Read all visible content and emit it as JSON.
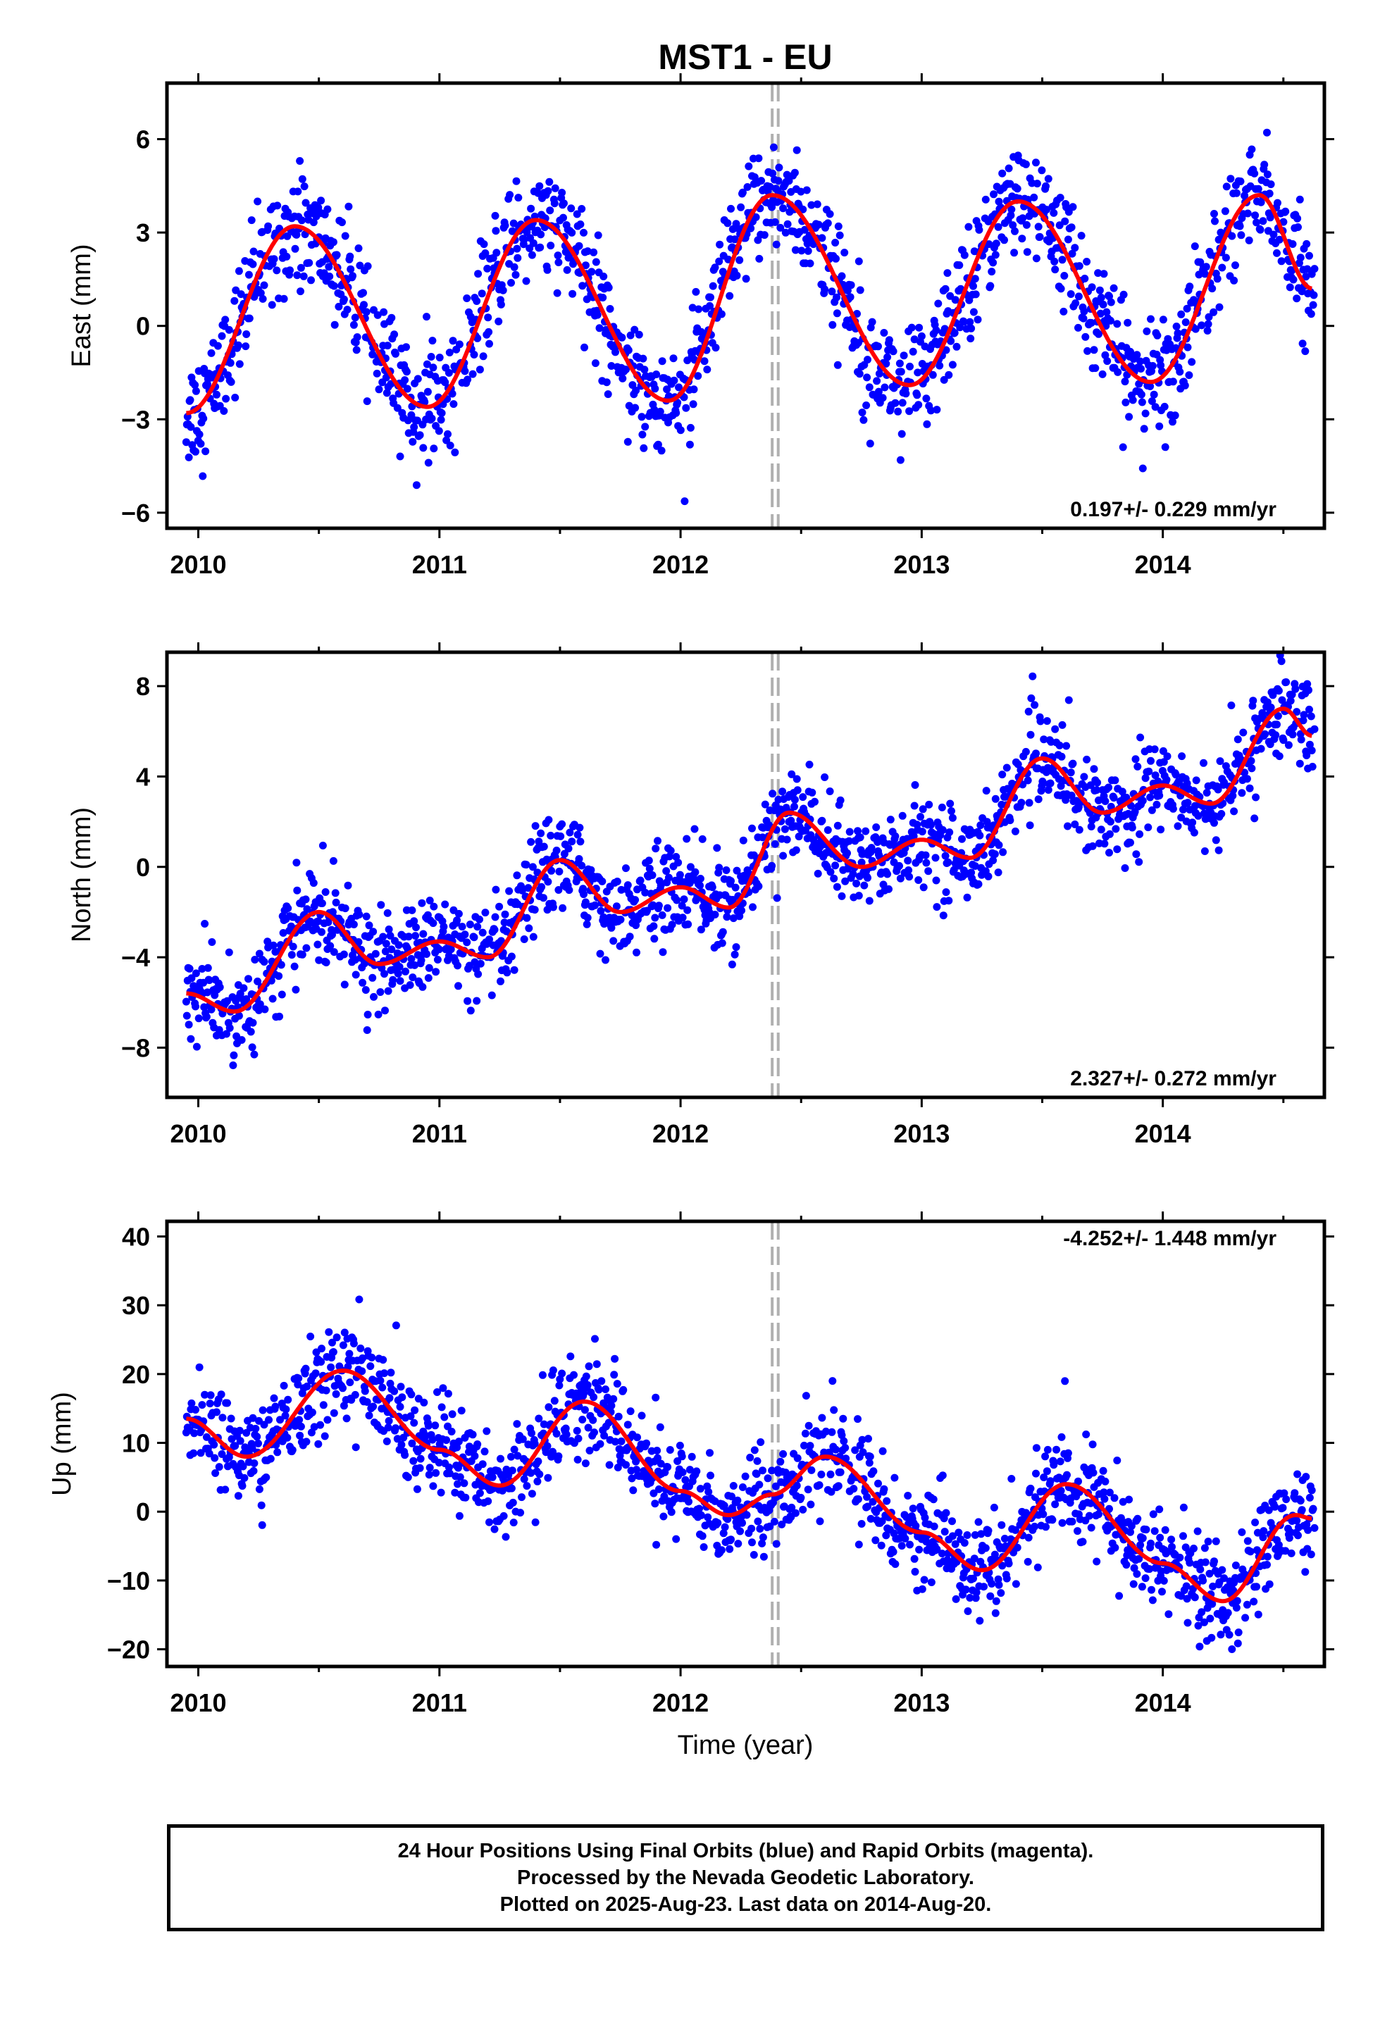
{
  "title": "MST1 - EU",
  "footer": {
    "line1": "24 Hour Positions Using Final Orbits (blue) and Rapid Orbits (magenta).",
    "line2": "Processed by the Nevada Geodetic Laboratory.",
    "line3": "Plotted on 2025-Aug-23. Last data on 2014-Aug-20."
  },
  "colors": {
    "data_points": "#0000ff",
    "model_fit": "#ff0000",
    "event_lines": "#b0b0b0",
    "frame": "#000000"
  },
  "chart_data": [
    {
      "type": "scatter",
      "ylabel": "East (mm)",
      "xlabel": "",
      "xlim": [
        2009.87,
        2014.67
      ],
      "ylim": [
        -6.5,
        7.8
      ],
      "xticks": [
        2010,
        2011,
        2012,
        2013,
        2014
      ],
      "yticks": [
        -6,
        -3,
        0,
        3,
        6
      ],
      "rate_label": "0.197+/- 0.229 mm/yr",
      "rate_position": "bottom-right",
      "event_lines_x": [
        2012.38,
        2012.405
      ],
      "trend": {
        "value_at_2010": -0.2,
        "rate_mm_per_yr": 0.197
      },
      "seasonal": [
        {
          "a": -3.0,
          "b": 0.0,
          "period_yr": 1
        },
        {
          "a": 0.0,
          "b": -0.5,
          "period_yr": 0.5
        }
      ],
      "offset_at_event": 0.0,
      "scatter_sigma": 0.9,
      "fit_points": [
        {
          "x": 2009.95,
          "y": -2.8
        },
        {
          "x": 2010.4,
          "y": 3.2
        },
        {
          "x": 2010.95,
          "y": -2.6
        },
        {
          "x": 2011.4,
          "y": 3.4
        },
        {
          "x": 2011.95,
          "y": -2.4
        },
        {
          "x": 2012.38,
          "y": 4.2
        },
        {
          "x": 2012.95,
          "y": -1.9
        },
        {
          "x": 2013.4,
          "y": 4.0
        },
        {
          "x": 2013.95,
          "y": -1.8
        },
        {
          "x": 2014.4,
          "y": 4.2
        },
        {
          "x": 2014.62,
          "y": 1.2
        }
      ]
    },
    {
      "type": "scatter",
      "ylabel": "North (mm)",
      "xlabel": "",
      "xlim": [
        2009.87,
        2014.67
      ],
      "ylim": [
        -10.2,
        9.5
      ],
      "xticks": [
        2010,
        2011,
        2012,
        2013,
        2014
      ],
      "yticks": [
        -8,
        -4,
        0,
        4,
        8
      ],
      "rate_label": "2.327+/- 0.272 mm/yr",
      "rate_position": "bottom-right",
      "event_lines_x": [
        2012.38,
        2012.405
      ],
      "trend": {
        "value_at_2010": -5.8,
        "rate_mm_per_yr": 2.327
      },
      "seasonal": [
        {
          "a": -1.0,
          "b": 0.5,
          "period_yr": 1
        },
        {
          "a": -0.6,
          "b": 0.3,
          "period_yr": 0.5
        }
      ],
      "offset_at_event": 0.0,
      "scatter_sigma": 1.0,
      "fit_points": [
        {
          "x": 2009.95,
          "y": -5.6
        },
        {
          "x": 2010.15,
          "y": -6.4
        },
        {
          "x": 2010.5,
          "y": -2.0
        },
        {
          "x": 2010.75,
          "y": -4.3
        },
        {
          "x": 2011.0,
          "y": -3.3
        },
        {
          "x": 2011.2,
          "y": -4.0
        },
        {
          "x": 2011.5,
          "y": 0.3
        },
        {
          "x": 2011.75,
          "y": -2.0
        },
        {
          "x": 2012.0,
          "y": -0.9
        },
        {
          "x": 2012.2,
          "y": -1.8
        },
        {
          "x": 2012.45,
          "y": 2.4
        },
        {
          "x": 2012.75,
          "y": 0.0
        },
        {
          "x": 2013.0,
          "y": 1.2
        },
        {
          "x": 2013.2,
          "y": 0.4
        },
        {
          "x": 2013.5,
          "y": 4.8
        },
        {
          "x": 2013.75,
          "y": 2.4
        },
        {
          "x": 2014.0,
          "y": 3.6
        },
        {
          "x": 2014.2,
          "y": 2.8
        },
        {
          "x": 2014.5,
          "y": 7.0
        },
        {
          "x": 2014.62,
          "y": 5.8
        }
      ]
    },
    {
      "type": "scatter",
      "ylabel": "Up (mm)",
      "xlabel": "Time (year)",
      "xlim": [
        2009.87,
        2014.67
      ],
      "ylim": [
        -22.5,
        42.2
      ],
      "xticks": [
        2010,
        2011,
        2012,
        2013,
        2014
      ],
      "yticks": [
        -20,
        -10,
        0,
        10,
        20,
        30,
        40
      ],
      "rate_label": "-4.252+/- 1.448 mm/yr",
      "rate_position": "top-right",
      "event_lines_x": [
        2012.38,
        2012.405
      ],
      "trend": {
        "value_at_2010": 15.0,
        "rate_mm_per_yr": -4.252
      },
      "seasonal": [
        {
          "a": -4.0,
          "b": -4.0,
          "period_yr": 1
        },
        {
          "a": 1.5,
          "b": 1.0,
          "period_yr": 0.5
        }
      ],
      "offset_at_event": 0.0,
      "scatter_sigma": 3.5,
      "fit_points": [
        {
          "x": 2009.95,
          "y": 13.5
        },
        {
          "x": 2010.2,
          "y": 8.0
        },
        {
          "x": 2010.6,
          "y": 20.5
        },
        {
          "x": 2011.0,
          "y": 9.0
        },
        {
          "x": 2011.25,
          "y": 3.8
        },
        {
          "x": 2011.6,
          "y": 16.0
        },
        {
          "x": 2012.0,
          "y": 3.0
        },
        {
          "x": 2012.2,
          "y": -0.5
        },
        {
          "x": 2012.38,
          "y": 2.5
        },
        {
          "x": 2012.6,
          "y": 8.0
        },
        {
          "x": 2013.0,
          "y": -3.0
        },
        {
          "x": 2013.25,
          "y": -8.5
        },
        {
          "x": 2013.6,
          "y": 4.0
        },
        {
          "x": 2014.0,
          "y": -7.5
        },
        {
          "x": 2014.25,
          "y": -13.0
        },
        {
          "x": 2014.55,
          "y": -0.5
        },
        {
          "x": 2014.62,
          "y": -1.0
        }
      ]
    }
  ]
}
